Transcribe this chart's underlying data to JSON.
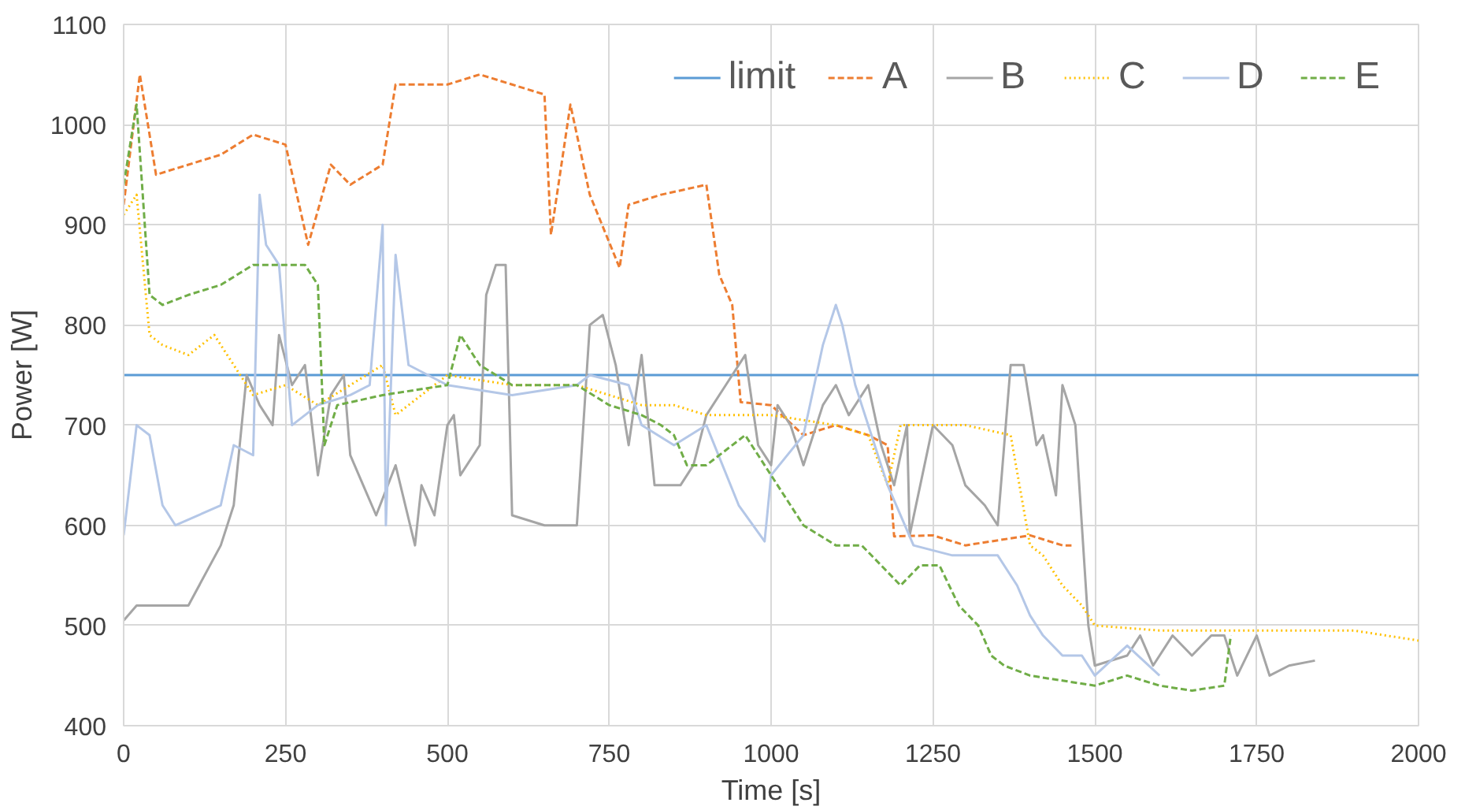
{
  "chart_data": {
    "type": "line",
    "xlabel": "Time [s]",
    "ylabel": "Power [W]",
    "xlim": [
      0,
      2000
    ],
    "ylim": [
      400,
      1100
    ],
    "xticks": [
      0,
      250,
      500,
      750,
      1000,
      1250,
      1500,
      1750,
      2000
    ],
    "yticks": [
      400,
      500,
      600,
      700,
      800,
      900,
      1000,
      1100
    ],
    "grid": true,
    "legend": "top right",
    "series": [
      {
        "name": "limit",
        "color": "#5b9bd5",
        "line_style": "solid",
        "x": [
          0,
          2000
        ],
        "values": [
          750,
          750
        ]
      },
      {
        "name": "A",
        "color": "#ed7d31",
        "line_style": "dashed",
        "x": [
          0,
          25,
          50,
          100,
          150,
          200,
          250,
          285,
          320,
          350,
          400,
          420,
          500,
          550,
          600,
          650,
          660,
          690,
          720,
          766,
          780,
          830,
          900,
          920,
          940,
          953,
          1000,
          1050,
          1100,
          1150,
          1180,
          1190,
          1250,
          1300,
          1400,
          1450,
          1464
        ],
        "values": [
          920,
          1050,
          950,
          960,
          970,
          990,
          980,
          880,
          960,
          940,
          960,
          1040,
          1040,
          1050,
          1040,
          1030,
          890,
          1020,
          930,
          857,
          920,
          930,
          940,
          850,
          820,
          723,
          720,
          690,
          700,
          690,
          680,
          589,
          590,
          580,
          590,
          580,
          580
        ]
      },
      {
        "name": "B",
        "color": "#a5a5a5",
        "line_style": "solid",
        "x": [
          0,
          20,
          100,
          150,
          170,
          190,
          210,
          230,
          240,
          260,
          280,
          300,
          320,
          340,
          350,
          370,
          390,
          420,
          450,
          460,
          480,
          500,
          510,
          520,
          550,
          560,
          575,
          590,
          600,
          650,
          700,
          720,
          740,
          760,
          780,
          800,
          820,
          860,
          880,
          900,
          930,
          960,
          980,
          1000,
          1010,
          1030,
          1050,
          1080,
          1100,
          1120,
          1150,
          1170,
          1190,
          1210,
          1214,
          1250,
          1280,
          1300,
          1330,
          1350,
          1370,
          1390,
          1410,
          1420,
          1440,
          1450,
          1470,
          1490,
          1500,
          1550,
          1570,
          1590,
          1620,
          1650,
          1680,
          1700,
          1720,
          1750,
          1770,
          1800,
          1840
        ],
        "values": [
          505,
          520,
          520,
          580,
          620,
          750,
          720,
          700,
          790,
          740,
          760,
          650,
          730,
          750,
          670,
          640,
          610,
          660,
          580,
          640,
          610,
          700,
          710,
          650,
          680,
          830,
          860,
          860,
          610,
          600,
          600,
          800,
          810,
          760,
          680,
          770,
          640,
          640,
          660,
          710,
          740,
          770,
          680,
          660,
          720,
          700,
          660,
          720,
          740,
          710,
          740,
          680,
          640,
          700,
          590,
          700,
          680,
          640,
          620,
          600,
          760,
          760,
          680,
          690,
          630,
          740,
          700,
          500,
          460,
          470,
          490,
          460,
          490,
          470,
          490,
          490,
          450,
          490,
          450,
          460,
          465
        ]
      },
      {
        "name": "C",
        "color": "#ffc000",
        "line_style": "dotted",
        "x": [
          0,
          20,
          40,
          60,
          100,
          140,
          170,
          200,
          250,
          300,
          350,
          400,
          420,
          500,
          600,
          700,
          750,
          800,
          850,
          900,
          1000,
          1100,
          1150,
          1180,
          1200,
          1300,
          1370,
          1400,
          1420,
          1450,
          1480,
          1500,
          1600,
          1700,
          1800,
          1900,
          2000
        ],
        "values": [
          910,
          930,
          790,
          780,
          770,
          790,
          760,
          730,
          740,
          720,
          740,
          760,
          710,
          750,
          740,
          740,
          730,
          720,
          720,
          710,
          710,
          700,
          690,
          640,
          700,
          700,
          690,
          580,
          570,
          540,
          520,
          500,
          495,
          495,
          495,
          495,
          485
        ]
      },
      {
        "name": "D",
        "color": "#b4c7e7",
        "line_style": "solid",
        "x": [
          0,
          20,
          40,
          60,
          80,
          150,
          170,
          200,
          210,
          220,
          240,
          260,
          300,
          350,
          380,
          400,
          405,
          420,
          440,
          500,
          600,
          700,
          720,
          780,
          800,
          850,
          900,
          950,
          990,
          1000,
          1050,
          1080,
          1100,
          1110,
          1130,
          1150,
          1180,
          1220,
          1280,
          1350,
          1380,
          1400,
          1420,
          1450,
          1480,
          1500,
          1550,
          1600
        ],
        "values": [
          590,
          700,
          690,
          620,
          600,
          620,
          680,
          670,
          930,
          880,
          860,
          700,
          720,
          730,
          740,
          900,
          600,
          870,
          760,
          740,
          730,
          740,
          750,
          740,
          700,
          680,
          700,
          620,
          584,
          650,
          690,
          780,
          820,
          800,
          740,
          700,
          640,
          580,
          570,
          570,
          540,
          510,
          490,
          470,
          470,
          450,
          480,
          450
        ]
      },
      {
        "name": "E",
        "color": "#70ad47",
        "line_style": "dashed",
        "x": [
          0,
          20,
          40,
          60,
          100,
          150,
          200,
          250,
          280,
          300,
          310,
          330,
          400,
          500,
          520,
          550,
          600,
          700,
          750,
          800,
          830,
          850,
          870,
          900,
          960,
          1000,
          1050,
          1100,
          1140,
          1170,
          1200,
          1230,
          1260,
          1290,
          1320,
          1340,
          1360,
          1400,
          1450,
          1500,
          1550,
          1600,
          1650,
          1700,
          1710
        ],
        "values": [
          940,
          1020,
          830,
          820,
          830,
          840,
          860,
          860,
          860,
          840,
          680,
          720,
          730,
          740,
          790,
          760,
          740,
          740,
          720,
          710,
          700,
          690,
          660,
          660,
          690,
          650,
          600,
          580,
          580,
          560,
          540,
          560,
          560,
          520,
          500,
          470,
          460,
          450,
          445,
          440,
          450,
          440,
          435,
          440,
          490
        ]
      }
    ]
  }
}
